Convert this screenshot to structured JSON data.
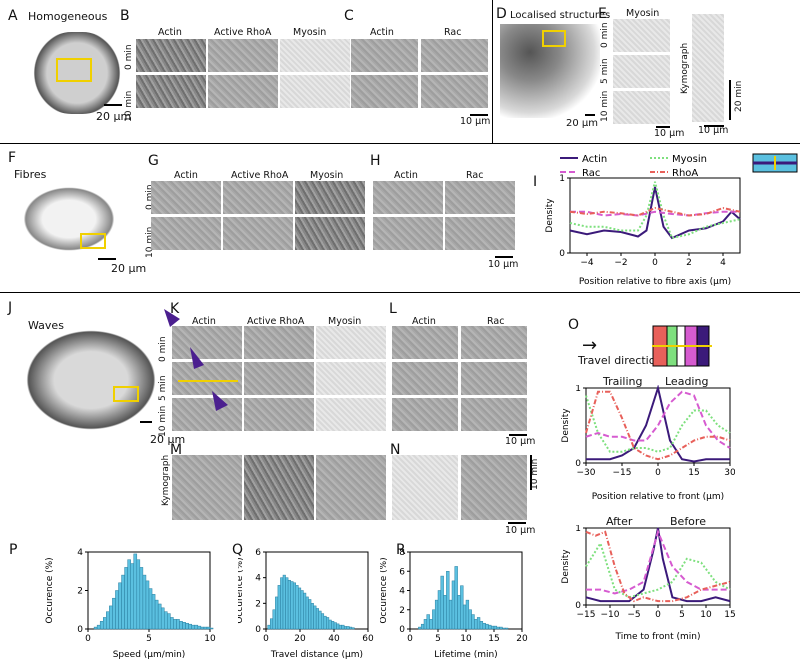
{
  "panels": {
    "A": {
      "letter": "A",
      "title": "Homogeneous",
      "scale": "20 µm"
    },
    "B": {
      "letter": "B",
      "cols": [
        "Actin",
        "Active RhoA",
        "Myosin"
      ],
      "rows": [
        "0 min",
        "10 min"
      ]
    },
    "C": {
      "letter": "C",
      "cols": [
        "Actin",
        "Rac"
      ],
      "scale": "10 µm"
    },
    "D": {
      "letter": "D",
      "title": "Localised structures",
      "scale": "20 µm"
    },
    "E": {
      "letter": "E",
      "col": "Myosin",
      "rows": [
        "0 min",
        "5 min",
        "10 min"
      ],
      "scale": "10 µm",
      "kymo_label": "Kymograph",
      "time_scale": "20 min"
    },
    "F": {
      "letter": "F",
      "title": "Fibres",
      "scale": "20 µm"
    },
    "G": {
      "letter": "G",
      "cols": [
        "Actin",
        "Active RhoA",
        "Myosin"
      ],
      "rows": [
        "0 min",
        "10 min"
      ]
    },
    "H": {
      "letter": "H",
      "cols": [
        "Actin",
        "Rac"
      ],
      "scale": "10 µm"
    },
    "I": {
      "letter": "I"
    },
    "J": {
      "letter": "J",
      "title": "Waves",
      "scale": "20 µm"
    },
    "K": {
      "letter": "K",
      "cols": [
        "Actin",
        "Active RhoA",
        "Myosin"
      ],
      "rows": [
        "0 min",
        "5 min",
        "10 min"
      ]
    },
    "L": {
      "letter": "L",
      "cols": [
        "Actin",
        "Rac"
      ],
      "scale": "10 µm"
    },
    "M": {
      "letter": "M",
      "kymo_label": "Kymograph"
    },
    "N": {
      "letter": "N",
      "scale": "10 µm",
      "time_scale": "10 min"
    },
    "O": {
      "letter": "O",
      "travel": "Travel direction",
      "trailing": "Trailing",
      "leading": "Leading",
      "after": "After",
      "before": "Before"
    },
    "P": {
      "letter": "P"
    },
    "Q": {
      "letter": "Q"
    },
    "R": {
      "letter": "R"
    }
  },
  "colors": {
    "actin": "#3b1a7a",
    "rac": "#d65bd0",
    "myosin": "#7ee07e",
    "rhoa": "#e8605a",
    "hist": "#5bc0e0",
    "yellow": "#f0d000"
  },
  "chart_data": [
    {
      "id": "I",
      "type": "line",
      "xlabel": "Position relative to fibre axis (µm)",
      "ylabel": "Density",
      "xlim": [
        -5,
        5
      ],
      "ylim": [
        0,
        1
      ],
      "xticks": [
        "−4",
        "−2",
        "0",
        "2",
        "4"
      ],
      "yticks": [
        "0",
        "1"
      ],
      "legend": [
        "Actin",
        "Myosin",
        "Rac",
        "RhoA"
      ],
      "series": [
        {
          "name": "Actin",
          "x": [
            -5,
            -4,
            -3,
            -2,
            -1,
            -0.5,
            0,
            0.5,
            1,
            2,
            3,
            4,
            4.5,
            5
          ],
          "y": [
            0.3,
            0.25,
            0.3,
            0.28,
            0.22,
            0.3,
            0.88,
            0.35,
            0.2,
            0.3,
            0.33,
            0.42,
            0.55,
            0.45
          ]
        },
        {
          "name": "Myosin",
          "x": [
            -5,
            -4,
            -3,
            -2,
            -1,
            -0.5,
            0,
            0.5,
            1,
            2,
            3,
            4,
            5
          ],
          "y": [
            0.4,
            0.35,
            0.35,
            0.3,
            0.3,
            0.5,
            0.95,
            0.5,
            0.2,
            0.25,
            0.35,
            0.4,
            0.45
          ]
        },
        {
          "name": "Rac",
          "x": [
            -5,
            -4,
            -3,
            -2,
            -1,
            0,
            1,
            2,
            3,
            4,
            5
          ],
          "y": [
            0.55,
            0.55,
            0.5,
            0.52,
            0.5,
            0.55,
            0.52,
            0.5,
            0.53,
            0.55,
            0.55
          ]
        },
        {
          "name": "RhoA",
          "x": [
            -5,
            -4,
            -3,
            -2,
            -1,
            0,
            1,
            2,
            3,
            4,
            5
          ],
          "y": [
            0.55,
            0.52,
            0.55,
            0.53,
            0.5,
            0.6,
            0.55,
            0.5,
            0.52,
            0.6,
            0.55
          ]
        }
      ]
    },
    {
      "id": "O1",
      "type": "line",
      "xlabel": "Position relative to front (µm)",
      "ylabel": "Density",
      "xlim": [
        -30,
        30
      ],
      "ylim": [
        0,
        1
      ],
      "xticks": [
        "−30",
        "−15",
        "0",
        "15",
        "30"
      ],
      "yticks": [
        "0",
        "1"
      ],
      "series": [
        {
          "name": "Actin",
          "x": [
            -30,
            -25,
            -20,
            -15,
            -10,
            -5,
            0,
            5,
            10,
            15,
            20,
            25,
            30
          ],
          "y": [
            0.05,
            0.05,
            0.05,
            0.1,
            0.2,
            0.5,
            1.0,
            0.3,
            0.05,
            0.02,
            0.05,
            0.05,
            0.05
          ]
        },
        {
          "name": "Myosin",
          "x": [
            -30,
            -25,
            -20,
            -15,
            -10,
            -5,
            0,
            5,
            10,
            15,
            20,
            25,
            30
          ],
          "y": [
            0.9,
            0.4,
            0.15,
            0.15,
            0.2,
            0.2,
            0.15,
            0.2,
            0.5,
            0.7,
            0.7,
            0.5,
            0.4
          ]
        },
        {
          "name": "Rac",
          "x": [
            -30,
            -25,
            -20,
            -15,
            -10,
            -5,
            0,
            5,
            10,
            15,
            20,
            25,
            30
          ],
          "y": [
            0.35,
            0.4,
            0.35,
            0.35,
            0.3,
            0.3,
            0.5,
            0.8,
            0.95,
            0.9,
            0.5,
            0.3,
            0.2
          ]
        },
        {
          "name": "RhoA",
          "x": [
            -30,
            -25,
            -20,
            -15,
            -10,
            -5,
            0,
            5,
            10,
            15,
            20,
            25,
            30
          ],
          "y": [
            0.4,
            0.95,
            0.95,
            0.6,
            0.2,
            0.1,
            0.05,
            0.1,
            0.2,
            0.3,
            0.35,
            0.35,
            0.3
          ]
        }
      ]
    },
    {
      "id": "O2",
      "type": "line",
      "xlabel": "Time to front (min)",
      "ylabel": "Density",
      "xlim": [
        -15,
        15
      ],
      "ylim": [
        0,
        1
      ],
      "xticks": [
        "−15",
        "−10",
        "−5",
        "0",
        "5",
        "10",
        "15"
      ],
      "yticks": [
        "0",
        "1"
      ],
      "series": [
        {
          "name": "Actin",
          "x": [
            -15,
            -12,
            -9,
            -6,
            -3,
            -1,
            0,
            1,
            3,
            6,
            9,
            12,
            15
          ],
          "y": [
            0.1,
            0.05,
            0.05,
            0.05,
            0.2,
            0.7,
            1.0,
            0.6,
            0.1,
            0.05,
            0.05,
            0.1,
            0.05
          ]
        },
        {
          "name": "Myosin",
          "x": [
            -15,
            -12,
            -9,
            -6,
            -3,
            0,
            3,
            6,
            9,
            12,
            15
          ],
          "y": [
            0.5,
            0.8,
            0.2,
            0.1,
            0.15,
            0.2,
            0.3,
            0.6,
            0.55,
            0.3,
            0.2
          ]
        },
        {
          "name": "Rac",
          "x": [
            -15,
            -12,
            -9,
            -6,
            -3,
            0,
            3,
            6,
            9,
            12,
            15
          ],
          "y": [
            0.2,
            0.2,
            0.15,
            0.2,
            0.3,
            0.95,
            0.5,
            0.3,
            0.2,
            0.2,
            0.2
          ]
        },
        {
          "name": "RhoA",
          "x": [
            -15,
            -13,
            -11,
            -9,
            -7,
            -5,
            -3,
            0,
            3,
            6,
            9,
            12,
            15
          ],
          "y": [
            0.95,
            0.9,
            0.95,
            0.5,
            0.15,
            0.05,
            0.1,
            0.05,
            0.05,
            0.1,
            0.2,
            0.25,
            0.3
          ]
        }
      ]
    },
    {
      "id": "P",
      "type": "bar",
      "xlabel": "Speed (µm/min)",
      "ylabel": "Occurence (%)",
      "xlim": [
        0,
        10
      ],
      "ylim": [
        0,
        4
      ],
      "xticks": [
        "0",
        "5",
        "10"
      ],
      "yticks": [
        "0",
        "2",
        "4"
      ],
      "bin_start": 0.5,
      "bin_width": 0.25,
      "values": [
        0.1,
        0.2,
        0.4,
        0.6,
        0.9,
        1.2,
        1.6,
        2.0,
        2.4,
        2.8,
        3.2,
        3.6,
        3.4,
        3.9,
        3.6,
        3.2,
        2.8,
        2.5,
        2.1,
        1.8,
        1.5,
        1.3,
        1.1,
        0.9,
        0.8,
        0.6,
        0.5,
        0.5,
        0.4,
        0.35,
        0.3,
        0.25,
        0.2,
        0.2,
        0.15,
        0.1,
        0.1,
        0.1,
        0.05
      ]
    },
    {
      "id": "Q",
      "type": "bar",
      "xlabel": "Travel distance (µm)",
      "ylabel": "Occurence (%)",
      "xlim": [
        0,
        60
      ],
      "ylim": [
        0,
        6
      ],
      "xticks": [
        "0",
        "20",
        "40",
        "60"
      ],
      "yticks": [
        "0",
        "2",
        "4",
        "6"
      ],
      "bin_start": 1,
      "bin_width": 1.5,
      "values": [
        0.3,
        0.8,
        1.5,
        2.5,
        3.4,
        4.0,
        4.2,
        4.0,
        3.8,
        3.7,
        3.6,
        3.4,
        3.2,
        3.0,
        2.8,
        2.5,
        2.3,
        2.0,
        1.8,
        1.6,
        1.4,
        1.2,
        1.0,
        0.9,
        0.7,
        0.6,
        0.5,
        0.4,
        0.3,
        0.3,
        0.2,
        0.2,
        0.15,
        0.1
      ]
    },
    {
      "id": "R",
      "type": "bar",
      "xlabel": "Lifetime (min)",
      "ylabel": "Occurence (%)",
      "xlim": [
        0,
        20
      ],
      "ylim": [
        0,
        8
      ],
      "xticks": [
        "0",
        "5",
        "10",
        "15",
        "20"
      ],
      "yticks": [
        "0",
        "2",
        "4",
        "6",
        "8"
      ],
      "bin_start": 0.5,
      "bin_width": 0.5,
      "values": [
        0,
        0,
        0.2,
        0.5,
        1.0,
        1.5,
        1.0,
        2.0,
        3.0,
        4.0,
        5.5,
        3.5,
        6.0,
        3.0,
        5.0,
        6.5,
        3.5,
        4.5,
        2.5,
        3.0,
        2.0,
        1.5,
        1.0,
        1.2,
        0.8,
        0.6,
        0.5,
        0.4,
        0.3,
        0.3,
        0.2,
        0.2,
        0.1,
        0.1
      ]
    }
  ]
}
